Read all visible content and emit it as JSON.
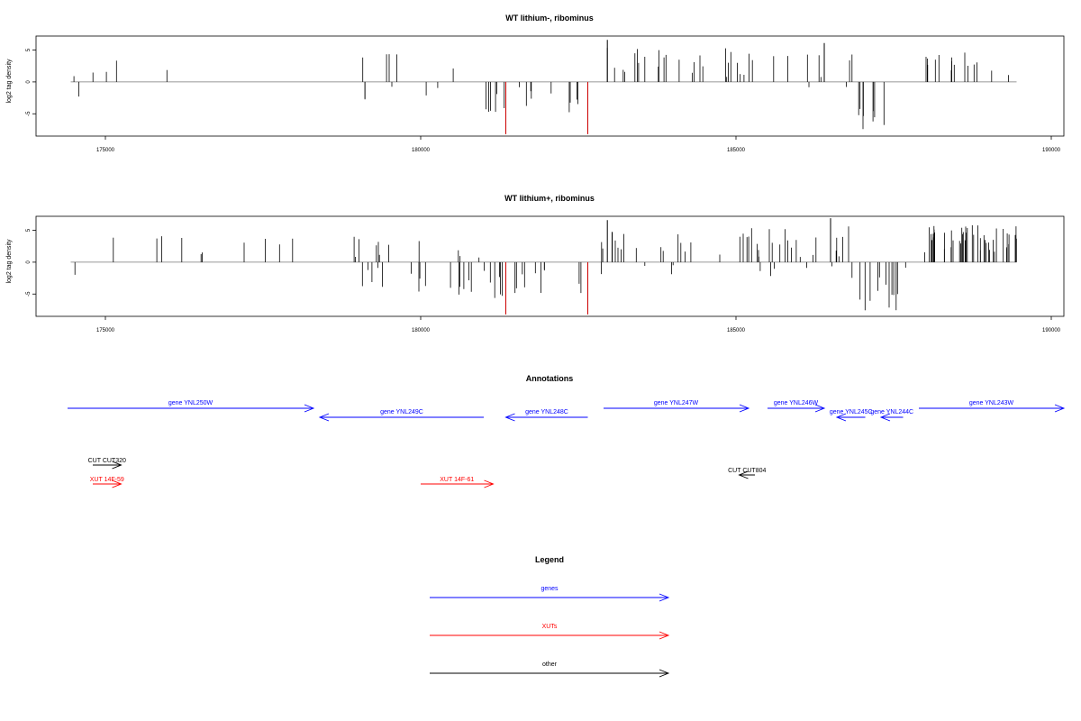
{
  "colors": {
    "bar": "#000000",
    "highlight": "#cc0000",
    "gene": "#0000ff",
    "xut": "#ff0000",
    "other": "#000000",
    "frame": "#000000"
  },
  "chart_data": [
    {
      "type": "bar",
      "title": "WT lithium-, ribominus",
      "ylabel": "log2 tag density",
      "xlim": [
        173900,
        190200
      ],
      "ylim": [
        -8.5,
        7.2
      ],
      "x_ticks": [
        175000,
        180000,
        185000,
        190000
      ],
      "x_tick_labels": [
        "175000",
        "180000",
        "185000",
        "190000"
      ],
      "y_ticks": [
        -5,
        0,
        5
      ],
      "y_tick_labels": [
        "-5",
        "0",
        "5"
      ],
      "baseline_range": [
        174450,
        189450
      ],
      "regions": [
        {
          "from": 174450,
          "to": 178750,
          "density": 0.012,
          "min": 0.6,
          "max": 3.4,
          "sign": 1
        },
        {
          "from": 174450,
          "to": 175050,
          "density": 0.01,
          "min": 1.0,
          "max": 2.5,
          "sign": -1
        },
        {
          "from": 178750,
          "to": 180000,
          "density": 0.035,
          "min": 0.3,
          "max": 4.4,
          "sign": 1
        },
        {
          "from": 178750,
          "to": 180000,
          "density": 0.02,
          "min": 0.3,
          "max": 2.8,
          "sign": -1
        },
        {
          "from": 180000,
          "to": 181000,
          "density": 0.01,
          "min": 0.3,
          "max": 3.2,
          "sign": 1
        },
        {
          "from": 180000,
          "to": 181000,
          "density": 0.02,
          "min": 0.3,
          "max": 3.0,
          "sign": -1
        },
        {
          "from": 181000,
          "to": 182650,
          "density": 0.09,
          "min": 0.8,
          "max": 5.3,
          "sign": -1
        },
        {
          "from": 182900,
          "to": 185300,
          "density": 0.11,
          "min": 0.6,
          "max": 5.6,
          "sign": 1
        },
        {
          "from": 185500,
          "to": 186900,
          "density": 0.05,
          "min": 0.4,
          "max": 4.3,
          "sign": 1
        },
        {
          "from": 185500,
          "to": 186900,
          "density": 0.012,
          "min": 0.3,
          "max": 1.6,
          "sign": -1
        },
        {
          "from": 186900,
          "to": 187500,
          "density": 0.14,
          "min": 2.0,
          "max": 7.4,
          "sign": -1
        },
        {
          "from": 187950,
          "to": 189450,
          "density": 0.1,
          "min": 0.8,
          "max": 4.6,
          "sign": 1
        }
      ],
      "spikes": [
        {
          "x": 181350,
          "y": -8.2,
          "color": "red"
        },
        {
          "x": 182650,
          "y": -8.2,
          "color": "red"
        },
        {
          "x": 182960,
          "y": 6.6,
          "color": "black"
        },
        {
          "x": 186400,
          "y": 6.1,
          "color": "black"
        }
      ]
    },
    {
      "type": "bar",
      "title": "WT lithium+, ribominus",
      "ylabel": "log2 tag density",
      "xlim": [
        173900,
        190200
      ],
      "ylim": [
        -8.5,
        7.2
      ],
      "x_ticks": [
        175000,
        180000,
        185000,
        190000
      ],
      "x_tick_labels": [
        "175000",
        "180000",
        "185000",
        "190000"
      ],
      "y_ticks": [
        -5,
        0,
        5
      ],
      "y_tick_labels": [
        "-5",
        "0",
        "5"
      ],
      "baseline_range": [
        174450,
        189450
      ],
      "regions": [
        {
          "from": 174450,
          "to": 174550,
          "density": 0.03,
          "min": 1.0,
          "max": 2.0,
          "sign": -1
        },
        {
          "from": 174800,
          "to": 178800,
          "density": 0.025,
          "min": 0.6,
          "max": 4.2,
          "sign": 1
        },
        {
          "from": 178800,
          "to": 180000,
          "density": 0.07,
          "min": 0.4,
          "max": 4.0,
          "sign": 1
        },
        {
          "from": 178800,
          "to": 180000,
          "density": 0.07,
          "min": 0.6,
          "max": 5.6,
          "sign": -1
        },
        {
          "from": 180000,
          "to": 181400,
          "density": 0.09,
          "min": 0.6,
          "max": 5.8,
          "sign": -1
        },
        {
          "from": 180000,
          "to": 181400,
          "density": 0.02,
          "min": 0.3,
          "max": 2.5,
          "sign": 1
        },
        {
          "from": 181400,
          "to": 182700,
          "density": 0.08,
          "min": 0.6,
          "max": 5.0,
          "sign": -1
        },
        {
          "from": 182800,
          "to": 185200,
          "density": 0.08,
          "min": 0.6,
          "max": 4.8,
          "sign": 1
        },
        {
          "from": 182800,
          "to": 185200,
          "density": 0.015,
          "min": 0.3,
          "max": 2.0,
          "sign": -1
        },
        {
          "from": 185200,
          "to": 186900,
          "density": 0.12,
          "min": 0.6,
          "max": 6.0,
          "sign": 1
        },
        {
          "from": 185200,
          "to": 186900,
          "density": 0.035,
          "min": 0.3,
          "max": 2.5,
          "sign": -1
        },
        {
          "from": 186900,
          "to": 187600,
          "density": 0.15,
          "min": 2.0,
          "max": 7.6,
          "sign": -1
        },
        {
          "from": 187600,
          "to": 187950,
          "density": 0.02,
          "min": 0.3,
          "max": 1.5,
          "sign": -1
        },
        {
          "from": 187950,
          "to": 189450,
          "density": 0.3,
          "min": 1.0,
          "max": 5.8,
          "sign": 1
        }
      ],
      "spikes": [
        {
          "x": 181350,
          "y": -8.2,
          "color": "red"
        },
        {
          "x": 182650,
          "y": -8.2,
          "color": "red"
        },
        {
          "x": 182960,
          "y": 6.6,
          "color": "black"
        },
        {
          "x": 186500,
          "y": 6.9,
          "color": "black"
        }
      ]
    }
  ],
  "annotations": {
    "title": "Annotations",
    "genes": [
      {
        "label": "gene YNL250W",
        "start": 174400,
        "end": 178300,
        "strand": "+",
        "row": 1
      },
      {
        "label": "gene YNL249C",
        "start": 178400,
        "end": 181000,
        "strand": "-",
        "row": 2
      },
      {
        "label": "gene YNL248C",
        "start": 181350,
        "end": 182650,
        "strand": "-",
        "row": 2
      },
      {
        "label": "gene YNL247W",
        "start": 182900,
        "end": 185200,
        "strand": "+",
        "row": 1
      },
      {
        "label": "gene YNL246W",
        "start": 185500,
        "end": 186400,
        "strand": "+",
        "row": 1
      },
      {
        "label": "gene YNL245C",
        "start": 186600,
        "end": 187050,
        "strand": "-",
        "row": 2
      },
      {
        "label": "gene YNL244C",
        "start": 187300,
        "end": 187650,
        "strand": "-",
        "row": 2
      },
      {
        "label": "gene YNL243W",
        "start": 187900,
        "end": 190200,
        "strand": "+",
        "row": 1
      }
    ],
    "others": [
      {
        "label": "CUT CUT320",
        "start": 174800,
        "end": 175250,
        "strand": "+"
      },
      {
        "label": "CUT CUT804",
        "start": 185050,
        "end": 185300,
        "strand": "-"
      }
    ],
    "xuts": [
      {
        "label": "XUT 14F-59",
        "start": 174800,
        "end": 175250,
        "strand": "+"
      },
      {
        "label": "XUT 14F-61",
        "start": 180000,
        "end": 181150,
        "strand": "+"
      }
    ]
  },
  "legend": {
    "title": "Legend",
    "items": [
      {
        "label": "genes",
        "color": "gene"
      },
      {
        "label": "XUTs",
        "color": "xut"
      },
      {
        "label": "other",
        "color": "other"
      }
    ]
  }
}
